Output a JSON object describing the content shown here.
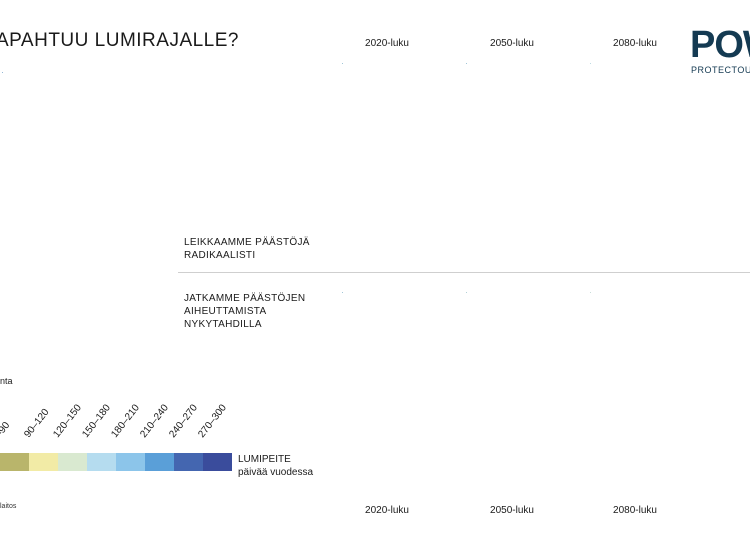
{
  "header": {
    "title": "APAHTUU LUMIRAJALLE?",
    "logo_text": "POW",
    "logo_subtext": "PROTECTOU"
  },
  "columns": {
    "top": [
      "2020-luku",
      "2050-luku",
      "2080-luku"
    ],
    "bottom": [
      "2020-luku",
      "2050-luku",
      "2080-luku"
    ]
  },
  "scenarios": {
    "low_emissions": [
      "LEIKKAAMME PÄÄSTÖJÄ",
      "RADIKAALISTI"
    ],
    "high_emissions": [
      "JATKAMME PÄÄSTÖJEN",
      "AIHEUTTAMISTA",
      "NYKYTAHDILLA"
    ]
  },
  "baseline": {
    "caption": "nta"
  },
  "legend": {
    "title": "LUMIPEITE",
    "subtitle": "päivää vuodessa",
    "classes": [
      {
        "label": "–90",
        "color": "#b9b56b"
      },
      {
        "label": "90–120",
        "color": "#f2eba6"
      },
      {
        "label": "120–150",
        "color": "#d9e9d0"
      },
      {
        "label": "150–180",
        "color": "#b5dcef"
      },
      {
        "label": "180–210",
        "color": "#8cc5ea"
      },
      {
        "label": "210–240",
        "color": "#5a9fd8"
      },
      {
        "label": "240–270",
        "color": "#4466b0"
      },
      {
        "label": "270–300",
        "color": "#3a4c9c"
      }
    ]
  },
  "footer": {
    "source": "laitos"
  }
}
